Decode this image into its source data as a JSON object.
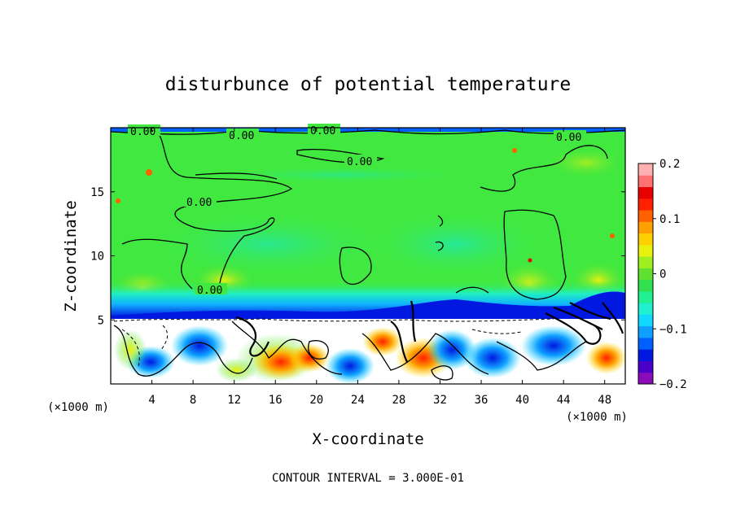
{
  "chart_data": {
    "type": "heatmap",
    "title": "disturbunce of potential temperature",
    "xlabel": "X-coordinate",
    "ylabel": "Z-coordinate",
    "x_unit_label": "(×1000 m)",
    "x_unit_label_right": "(×1000 m)",
    "xlim": [
      0,
      50
    ],
    "ylim": [
      0,
      20
    ],
    "x_ticks": [
      4,
      8,
      12,
      16,
      20,
      24,
      28,
      32,
      36,
      40,
      44,
      48
    ],
    "y_ticks": [
      5,
      10,
      15
    ],
    "colorbar": {
      "range": [
        -0.2,
        0.2
      ],
      "ticks": [
        "0.2",
        "0.1",
        "0",
        "−0.1",
        "−0.2"
      ],
      "tick_values": [
        0.2,
        0.1,
        0,
        -0.1,
        -0.2
      ],
      "colors": [
        "#8a0bb8",
        "#4a00c8",
        "#0018e0",
        "#0060ff",
        "#0fa0ff",
        "#10d8ff",
        "#20f0d0",
        "#20f090",
        "#30e050",
        "#60e030",
        "#a0f020",
        "#e8f010",
        "#ffd000",
        "#ffa000",
        "#ff6000",
        "#ff2000",
        "#e80000",
        "#ff7070",
        "#ffb0b0"
      ]
    },
    "contour_labels": [
      "0.00",
      "0.00",
      "0.00",
      "0.00",
      "0.00",
      "0.00",
      "0.00"
    ],
    "contour_interval_text": "CONTOUR INTERVAL = 3.000E-01"
  }
}
